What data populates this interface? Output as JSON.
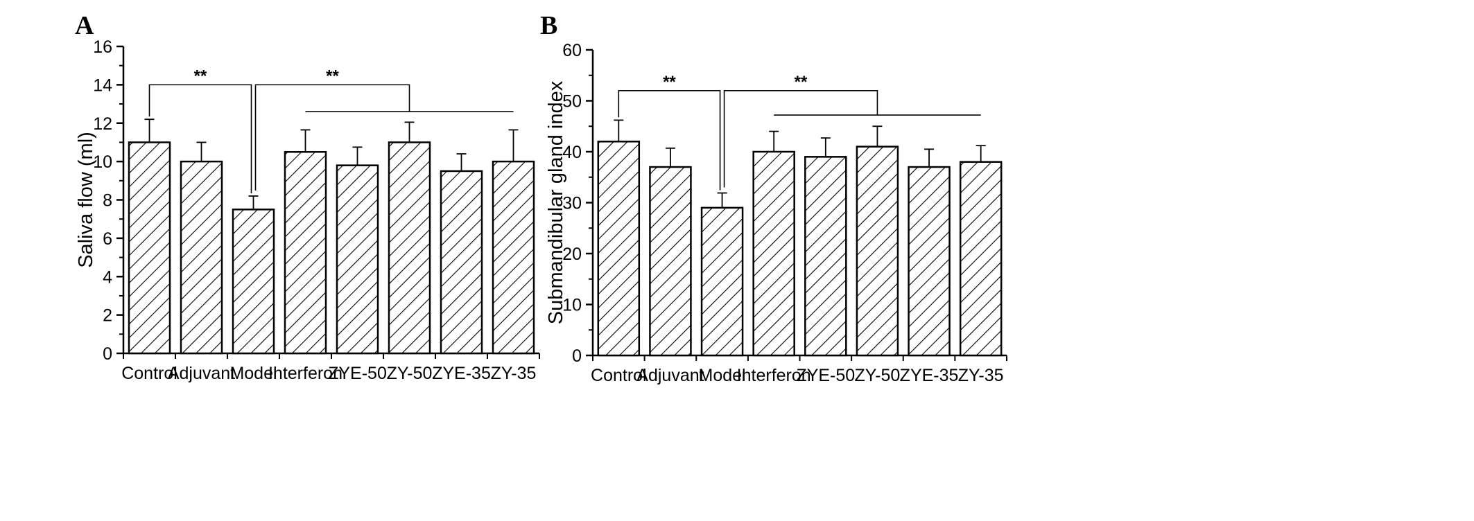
{
  "chart_data": [
    {
      "type": "bar",
      "panel": "A",
      "categories": [
        "Control",
        "Adjuvant",
        "Model",
        "Interferon",
        "ZYE-50",
        "ZY-50",
        "ZYE-35",
        "ZY-35"
      ],
      "values": [
        11.0,
        10.0,
        7.5,
        10.5,
        9.8,
        11.0,
        9.5,
        10.0
      ],
      "errors": [
        1.2,
        1.0,
        0.7,
        1.15,
        0.95,
        1.05,
        0.9,
        1.65
      ],
      "title": "",
      "xlabel": "",
      "ylabel": "Saliva flow (ml)",
      "ylim": [
        0,
        16
      ],
      "yticks": [
        0,
        2,
        4,
        6,
        8,
        10,
        12,
        14,
        16
      ],
      "fill_pattern": "diagonal-hatch",
      "grid": false,
      "legend": "none",
      "significance": [
        {
          "from": "Control",
          "to": "Model",
          "label": "**",
          "level": 14.0
        },
        {
          "from": "Model",
          "to": "ZY-50",
          "label": "**",
          "level": 14.0
        }
      ],
      "group_line": {
        "from": "Interferon",
        "to": "ZY-35",
        "level": 12.6
      }
    },
    {
      "type": "bar",
      "panel": "B",
      "categories": [
        "Control",
        "Adjuvant",
        "Model",
        "Interferon",
        "ZYE-50",
        "ZY-50",
        "ZYE-35",
        "ZY-35"
      ],
      "values": [
        42,
        37,
        29,
        40,
        39,
        41,
        37,
        38
      ],
      "errors": [
        4.2,
        3.7,
        2.9,
        4.0,
        3.7,
        4.0,
        3.5,
        3.2
      ],
      "title": "",
      "xlabel": "",
      "ylabel": "Submandibular gland index",
      "ylim": [
        0,
        60
      ],
      "yticks": [
        0,
        10,
        20,
        30,
        40,
        50,
        60
      ],
      "fill_pattern": "diagonal-hatch",
      "grid": false,
      "legend": "none",
      "significance": [
        {
          "from": "Control",
          "to": "Model",
          "label": "**",
          "level": 52.0
        },
        {
          "from": "Model",
          "to": "ZY-50",
          "label": "**",
          "level": 52.0
        }
      ],
      "group_line": {
        "from": "Interferon",
        "to": "ZY-35",
        "level": 47.2
      }
    }
  ]
}
